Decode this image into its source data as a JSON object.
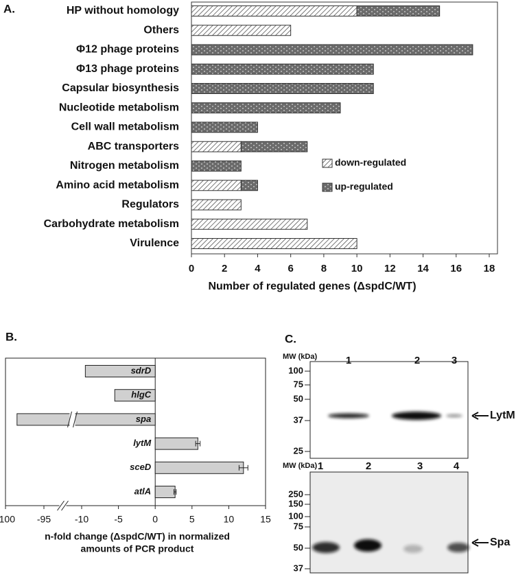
{
  "chart_data": [
    {
      "type": "hbar-stacked",
      "panel_label": "A.",
      "categories": [
        "HP without homology",
        "Others",
        "Φ12 phage proteins",
        "Φ13 phage proteins",
        "Capsular biosynthesis",
        "Nucleotide metabolism",
        "Cell wall metabolism",
        "ABC transporters",
        "Nitrogen metabolism",
        "Amino acid metabolism",
        "Regulators",
        "Carbohydrate metabolism",
        "Virulence"
      ],
      "series": [
        {
          "name": "down-regulated",
          "color": "#ffffff",
          "pattern": "hatch",
          "values": [
            10,
            6,
            0,
            0,
            0,
            0,
            0,
            3,
            0,
            3,
            3,
            7,
            10
          ]
        },
        {
          "name": "up-regulated",
          "color": "#6b6b6b",
          "pattern": "dots",
          "values": [
            5,
            0,
            17,
            11,
            11,
            9,
            4,
            4,
            3,
            1,
            0,
            0,
            0
          ]
        }
      ],
      "xlabel": "Number of regulated genes (ΔspdC/WT)",
      "xlim": [
        0,
        18
      ],
      "xticks": [
        0,
        2,
        4,
        6,
        8,
        10,
        12,
        14,
        16,
        18
      ],
      "legend": "right"
    },
    {
      "type": "hbar-broken",
      "panel_label": "B.",
      "categories": [
        "sdrD",
        "hlgC",
        "spa",
        "lytM",
        "sceD",
        "atlA"
      ],
      "values": [
        -9.5,
        -5.5,
        -98.5,
        5.8,
        12,
        2.7
      ],
      "errors": [
        null,
        null,
        null,
        0.3,
        0.6,
        0.15
      ],
      "color": "#d0d0d0",
      "xlabel": [
        "n-fold change (ΔspdC/WT) in normalized",
        "amounts of PCR product"
      ],
      "xlim": [
        -100,
        15
      ],
      "xbreak": [
        -95,
        -10
      ],
      "xticks": [
        -100,
        -95,
        -10,
        -5,
        0,
        5,
        10,
        15
      ]
    }
  ],
  "blots": {
    "panel_label": "C.",
    "items": [
      {
        "mw_label": "MW (kDa)",
        "markers": [
          100,
          75,
          50,
          37,
          25
        ],
        "lanes": [
          "1",
          "2",
          "3"
        ],
        "band": "LytM"
      },
      {
        "mw_label": "MW (kDa)",
        "markers": [
          250,
          150,
          100,
          75,
          50,
          37
        ],
        "lanes": [
          "1",
          "2",
          "3",
          "4"
        ],
        "band": "Spa"
      }
    ]
  }
}
